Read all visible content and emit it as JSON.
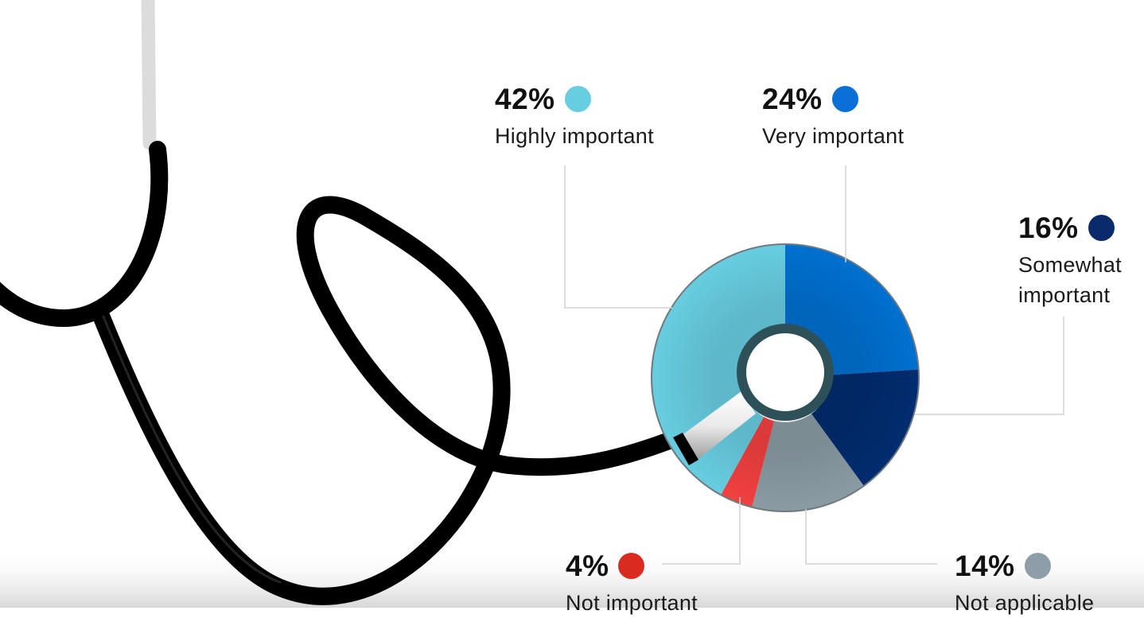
{
  "chart_data": {
    "type": "pie",
    "style": "donut",
    "start": "top",
    "direction": "clockwise",
    "slices": [
      {
        "label": "Very important",
        "percent_text": "24%",
        "value": 24,
        "color": "#0070D0"
      },
      {
        "label": "Somewhat important",
        "percent_text": "16%",
        "value": 16,
        "color": "#012C6E"
      },
      {
        "label": "Not applicable",
        "percent_text": "14%",
        "value": 14,
        "color": "#8A9BA3"
      },
      {
        "label": "Not important",
        "percent_text": "4%",
        "value": 4,
        "color": "#F24040"
      },
      {
        "label": "Highly important",
        "percent_text": "42%",
        "value": 42,
        "color": "#67CDE0"
      }
    ],
    "legend_dot_colors": {
      "highly_important": "#67CDE0",
      "very_important": "#0A70D8",
      "somewhat_important": "#0B2A6B",
      "not_important": "#D92B20",
      "not_applicable": "#8E9EA6"
    }
  },
  "labels": {
    "highly": {
      "pct": "42%",
      "text": "Highly important"
    },
    "very": {
      "pct": "24%",
      "text": "Very important"
    },
    "somewhat": {
      "pct": "16%",
      "text": "Somewhat important"
    },
    "notimp": {
      "pct": "4%",
      "text": "Not important"
    },
    "notapp": {
      "pct": "14%",
      "text": "Not applicable"
    }
  },
  "decoration": {
    "illustration": "stethoscope-icon",
    "tube_color": "#000000",
    "ring_color": "#2E5058"
  }
}
